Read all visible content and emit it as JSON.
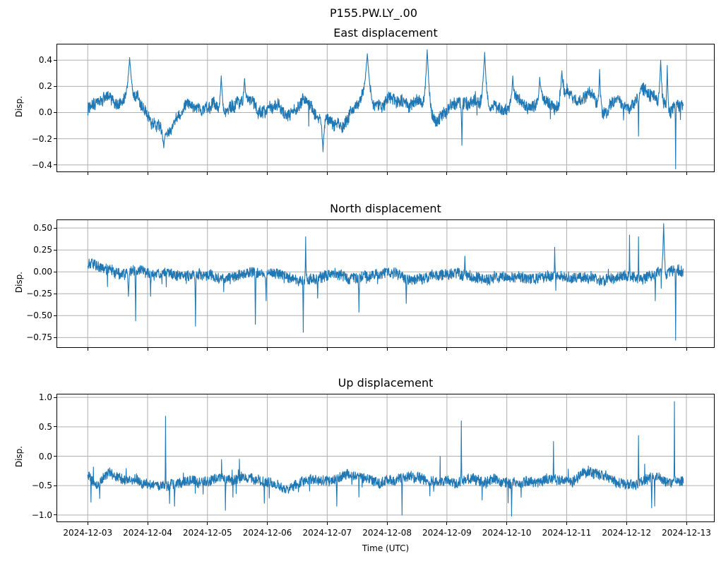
{
  "figure": {
    "suptitle": "P155.PW.LY_.00",
    "background": "#ffffff",
    "line_color": "#1f77b4",
    "grid_color": "#b0b0b0",
    "spine_color": "#000000",
    "grid_on": true
  },
  "x_axis": {
    "label": "Time (UTC)",
    "tick_labels": [
      "2024-12-03",
      "2024-12-04",
      "2024-12-05",
      "2024-12-06",
      "2024-12-07",
      "2024-12-08",
      "2024-12-09",
      "2024-12-10",
      "2024-12-11",
      "2024-12-12",
      "2024-12-13"
    ],
    "tick_days": [
      0,
      1,
      2,
      3,
      4,
      5,
      6,
      7,
      8,
      9,
      10
    ],
    "xlim_days": [
      -0.51,
      10.46
    ]
  },
  "chart_data": [
    {
      "type": "line",
      "title": "East displacement",
      "ylabel": "Disp.",
      "line_color": "#1f77b4",
      "ylim": [
        -0.45,
        0.52
      ],
      "yticks": [
        0.4,
        0.2,
        0.0,
        -0.2,
        -0.4
      ],
      "ytick_decimals": 1,
      "t_range_days": [
        0.0,
        9.95
      ],
      "baseline_anchors": [
        [
          0.0,
          0.03
        ],
        [
          0.3,
          0.08
        ],
        [
          0.55,
          0.05
        ],
        [
          0.78,
          0.07
        ],
        [
          0.95,
          0.0
        ],
        [
          1.2,
          -0.1
        ],
        [
          1.32,
          -0.14
        ],
        [
          1.5,
          -0.02
        ],
        [
          1.7,
          0.07
        ],
        [
          1.9,
          0.0
        ],
        [
          2.1,
          0.08
        ],
        [
          2.3,
          -0.05
        ],
        [
          2.5,
          0.02
        ],
        [
          2.7,
          0.1
        ],
        [
          2.9,
          0.0
        ],
        [
          3.1,
          0.1
        ],
        [
          3.35,
          0.05
        ],
        [
          3.6,
          0.15
        ],
        [
          3.85,
          -0.05
        ],
        [
          4.0,
          -0.1
        ],
        [
          4.25,
          -0.1
        ],
        [
          4.45,
          0.02
        ],
        [
          4.6,
          0.1
        ],
        [
          4.85,
          0.0
        ],
        [
          5.05,
          0.08
        ],
        [
          5.3,
          0.02
        ],
        [
          5.55,
          0.1
        ],
        [
          5.85,
          -0.05
        ],
        [
          6.05,
          0.05
        ],
        [
          6.3,
          0.1
        ],
        [
          6.5,
          0.08
        ],
        [
          6.75,
          -0.02
        ],
        [
          6.95,
          0.02
        ],
        [
          7.15,
          0.12
        ],
        [
          7.35,
          0.0
        ],
        [
          7.6,
          0.1
        ],
        [
          7.8,
          -0.04
        ],
        [
          8.0,
          0.12
        ],
        [
          8.2,
          0.0
        ],
        [
          8.45,
          0.12
        ],
        [
          8.65,
          0.02
        ],
        [
          8.85,
          0.1
        ],
        [
          9.05,
          0.0
        ],
        [
          9.25,
          0.1
        ],
        [
          9.45,
          0.12
        ],
        [
          9.7,
          0.05
        ],
        [
          9.95,
          0.12
        ]
      ],
      "noise_amp": 0.045,
      "wander": {
        "step": 0.02,
        "damp": 0.992,
        "max": 0.08
      },
      "spike_texture": {
        "p_up": 0.003,
        "amp_up": 0.15,
        "p_down": 0.003,
        "amp_down": 0.15
      },
      "spikes": [
        [
          0.7,
          0.42,
          0.09
        ],
        [
          1.27,
          -0.27,
          0.05
        ],
        [
          2.23,
          0.28,
          0.05
        ],
        [
          2.62,
          0.26,
          0.04
        ],
        [
          3.93,
          -0.3,
          0.05
        ],
        [
          4.67,
          0.45,
          0.1
        ],
        [
          5.67,
          0.48,
          0.09
        ],
        [
          6.25,
          -0.25,
          0.02
        ],
        [
          6.63,
          0.46,
          0.09
        ],
        [
          7.1,
          0.28,
          0.05
        ],
        [
          7.55,
          0.27,
          0.04
        ],
        [
          7.92,
          0.32,
          0.05
        ],
        [
          8.55,
          0.33,
          0.04
        ],
        [
          9.2,
          -0.18,
          0.015
        ],
        [
          9.57,
          0.4,
          0.05
        ],
        [
          9.68,
          0.36,
          0.03
        ],
        [
          9.82,
          -0.43,
          0.012
        ]
      ],
      "seed": 42
    },
    {
      "type": "line",
      "title": "North displacement",
      "ylabel": "Disp.",
      "line_color": "#1f77b4",
      "ylim": [
        -0.86,
        0.59
      ],
      "yticks": [
        0.5,
        0.25,
        0.0,
        -0.25,
        -0.5,
        -0.75
      ],
      "ytick_decimals": 2,
      "t_range_days": [
        0.0,
        9.95
      ],
      "baseline_anchors": [
        [
          0.0,
          0.1
        ],
        [
          0.25,
          0.0
        ],
        [
          0.5,
          -0.04
        ],
        [
          0.8,
          -0.02
        ],
        [
          1.1,
          -0.06
        ],
        [
          1.4,
          -0.02
        ],
        [
          1.7,
          -0.05
        ],
        [
          2.0,
          -0.02
        ],
        [
          2.3,
          -0.07
        ],
        [
          2.6,
          -0.03
        ],
        [
          2.9,
          -0.06
        ],
        [
          3.2,
          -0.02
        ],
        [
          3.5,
          -0.05
        ],
        [
          3.8,
          -0.06
        ],
        [
          4.1,
          -0.02
        ],
        [
          4.4,
          -0.07
        ],
        [
          4.7,
          -0.04
        ],
        [
          5.0,
          -0.02
        ],
        [
          5.3,
          -0.07
        ],
        [
          5.6,
          -0.03
        ],
        [
          5.9,
          -0.06
        ],
        [
          6.2,
          -0.02
        ],
        [
          6.5,
          -0.05
        ],
        [
          6.8,
          -0.05
        ],
        [
          7.1,
          -0.02
        ],
        [
          7.4,
          -0.05
        ],
        [
          7.7,
          -0.02
        ],
        [
          8.0,
          -0.05
        ],
        [
          8.3,
          -0.03
        ],
        [
          8.6,
          -0.06
        ],
        [
          8.9,
          -0.02
        ],
        [
          9.2,
          -0.05
        ],
        [
          9.5,
          0.0
        ],
        [
          9.75,
          0.02
        ],
        [
          9.95,
          0.03
        ]
      ],
      "noise_amp": 0.06,
      "wander": {
        "step": 0.015,
        "damp": 0.99,
        "max": 0.05
      },
      "spike_texture": {
        "p_up": 0.002,
        "amp_up": 0.12,
        "p_down": 0.006,
        "amp_down": 0.25
      },
      "spikes": [
        [
          0.68,
          -0.28,
          0.03
        ],
        [
          0.8,
          -0.56,
          0.015
        ],
        [
          1.05,
          -0.28,
          0.015
        ],
        [
          1.8,
          -0.62,
          0.015
        ],
        [
          2.8,
          -0.6,
          0.015
        ],
        [
          2.98,
          -0.33,
          0.015
        ],
        [
          3.6,
          -0.69,
          0.012
        ],
        [
          3.64,
          0.4,
          0.015
        ],
        [
          3.84,
          -0.3,
          0.015
        ],
        [
          4.53,
          -0.46,
          0.015
        ],
        [
          5.32,
          -0.36,
          0.015
        ],
        [
          6.3,
          0.18,
          0.02
        ],
        [
          7.8,
          0.28,
          0.015
        ],
        [
          9.05,
          0.42,
          0.01
        ],
        [
          9.2,
          0.4,
          0.01
        ],
        [
          9.48,
          -0.33,
          0.012
        ],
        [
          9.62,
          0.55,
          0.04
        ],
        [
          9.82,
          -0.78,
          0.012
        ]
      ],
      "seed": 77
    },
    {
      "type": "line",
      "title": "Up displacement",
      "ylabel": "Disp.",
      "line_color": "#1f77b4",
      "ylim": [
        -1.11,
        1.05
      ],
      "yticks": [
        1.0,
        0.5,
        0.0,
        -0.5,
        -1.0
      ],
      "ytick_decimals": 1,
      "t_range_days": [
        0.0,
        9.95
      ],
      "baseline_anchors": [
        [
          0.0,
          -0.3
        ],
        [
          0.15,
          -0.5
        ],
        [
          0.35,
          -0.3
        ],
        [
          0.6,
          -0.38
        ],
        [
          0.9,
          -0.45
        ],
        [
          1.2,
          -0.5
        ],
        [
          1.5,
          -0.45
        ],
        [
          1.8,
          -0.42
        ],
        [
          2.1,
          -0.35
        ],
        [
          2.4,
          -0.45
        ],
        [
          2.7,
          -0.38
        ],
        [
          3.0,
          -0.45
        ],
        [
          3.3,
          -0.52
        ],
        [
          3.6,
          -0.42
        ],
        [
          3.9,
          -0.4
        ],
        [
          4.2,
          -0.38
        ],
        [
          4.5,
          -0.35
        ],
        [
          4.8,
          -0.42
        ],
        [
          5.1,
          -0.45
        ],
        [
          5.4,
          -0.4
        ],
        [
          5.7,
          -0.42
        ],
        [
          6.0,
          -0.45
        ],
        [
          6.3,
          -0.4
        ],
        [
          6.6,
          -0.42
        ],
        [
          6.9,
          -0.45
        ],
        [
          7.2,
          -0.42
        ],
        [
          7.5,
          -0.44
        ],
        [
          7.8,
          -0.4
        ],
        [
          8.1,
          -0.45
        ],
        [
          8.35,
          -0.3
        ],
        [
          8.6,
          -0.38
        ],
        [
          8.9,
          -0.5
        ],
        [
          9.2,
          -0.45
        ],
        [
          9.5,
          -0.32
        ],
        [
          9.7,
          -0.45
        ],
        [
          9.95,
          -0.42
        ]
      ],
      "noise_amp": 0.085,
      "wander": {
        "step": 0.02,
        "damp": 0.99,
        "max": 0.07
      },
      "spike_texture": {
        "p_up": 0.01,
        "amp_up": 0.38,
        "p_down": 0.01,
        "amp_down": 0.35
      },
      "spikes": [
        [
          0.2,
          -0.72,
          0.012
        ],
        [
          1.3,
          0.68,
          0.01
        ],
        [
          1.45,
          -0.85,
          0.012
        ],
        [
          2.3,
          -0.92,
          0.012
        ],
        [
          2.95,
          -0.8,
          0.012
        ],
        [
          4.16,
          -0.85,
          0.012
        ],
        [
          5.25,
          -1.0,
          0.01
        ],
        [
          6.24,
          0.6,
          0.01
        ],
        [
          7.08,
          -1.02,
          0.01
        ],
        [
          7.78,
          0.25,
          0.01
        ],
        [
          9.2,
          0.35,
          0.01
        ],
        [
          9.42,
          -0.88,
          0.012
        ],
        [
          9.47,
          -0.85,
          0.01
        ],
        [
          9.8,
          0.93,
          0.008
        ]
      ],
      "seed": 101
    }
  ]
}
